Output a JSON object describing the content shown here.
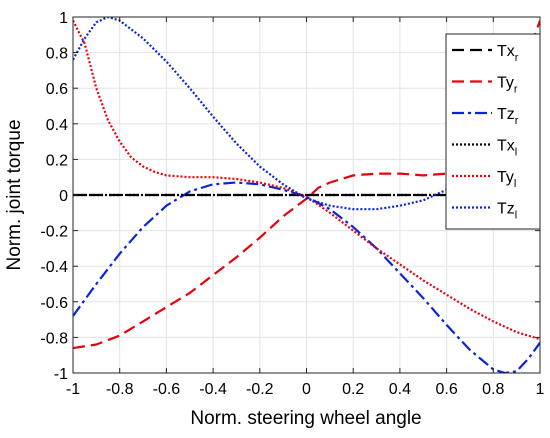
{
  "chart_data": {
    "type": "line",
    "title": "",
    "xlabel": "Norm. steering wheel angle",
    "ylabel": "Norm. joint torque",
    "xlim": [
      -1,
      1
    ],
    "ylim": [
      -1,
      1
    ],
    "grid": true,
    "legend_position": "top-right",
    "x_ticks": [
      -1,
      -0.8,
      -0.6,
      -0.4,
      -0.2,
      0,
      0.2,
      0.4,
      0.6,
      0.8,
      1
    ],
    "x_tick_labels": [
      "-1",
      "-0.8",
      "-0.6",
      "-0.4",
      "-0.2",
      "0",
      "0.2",
      "0.4",
      "0.6",
      "0.8",
      "1"
    ],
    "y_ticks": [
      1,
      0.8,
      0.6,
      0.4,
      0.2,
      0,
      -0.2,
      -0.4,
      -0.6,
      -0.8,
      -1
    ],
    "y_tick_labels": [
      "1",
      "0.8",
      "0.6",
      "0.4",
      "0.2",
      "0",
      "-0.2",
      "-0.4",
      "-0.6",
      "-0.8",
      "-1"
    ],
    "series": [
      {
        "name": "Tx",
        "sub": "r",
        "color": "#000000",
        "style": "dashed",
        "x": [
          -1,
          1
        ],
        "y": [
          0,
          0
        ]
      },
      {
        "name": "Ty",
        "sub": "r",
        "color": "#e8000b",
        "style": "dashed",
        "x": [
          -1,
          -0.9,
          -0.8,
          -0.7,
          -0.6,
          -0.5,
          -0.4,
          -0.3,
          -0.2,
          -0.1,
          0,
          0.05,
          0.1,
          0.2,
          0.3,
          0.4,
          0.5,
          0.6,
          0.7,
          0.8,
          0.9,
          0.95,
          1
        ],
        "y": [
          -0.86,
          -0.84,
          -0.79,
          -0.71,
          -0.63,
          -0.55,
          -0.45,
          -0.35,
          -0.24,
          -0.12,
          -0.02,
          0.04,
          0.07,
          0.11,
          0.12,
          0.12,
          0.11,
          0.12,
          0.15,
          0.25,
          0.55,
          0.8,
          0.98
        ]
      },
      {
        "name": "Tz",
        "sub": "r",
        "color": "#0b24d6",
        "style": "dashdot",
        "x": [
          -1,
          -0.9,
          -0.8,
          -0.7,
          -0.6,
          -0.5,
          -0.4,
          -0.3,
          -0.2,
          -0.1,
          0,
          0.1,
          0.2,
          0.3,
          0.4,
          0.5,
          0.6,
          0.7,
          0.8,
          0.85,
          0.9,
          0.95,
          1
        ],
        "y": [
          -0.68,
          -0.5,
          -0.33,
          -0.18,
          -0.06,
          0.02,
          0.06,
          0.07,
          0.06,
          0.03,
          -0.01,
          -0.08,
          -0.18,
          -0.3,
          -0.44,
          -0.58,
          -0.73,
          -0.87,
          -0.98,
          -1.0,
          -0.99,
          -0.92,
          -0.83
        ]
      },
      {
        "name": "Tx",
        "sub": "l",
        "color": "#000000",
        "style": "dotted",
        "x": [
          -1,
          1
        ],
        "y": [
          0,
          0
        ]
      },
      {
        "name": "Ty",
        "sub": "l",
        "color": "#e8000b",
        "style": "dotted",
        "x": [
          -1,
          -0.95,
          -0.9,
          -0.85,
          -0.8,
          -0.75,
          -0.7,
          -0.65,
          -0.6,
          -0.5,
          -0.4,
          -0.3,
          -0.2,
          -0.1,
          0,
          0.1,
          0.2,
          0.3,
          0.4,
          0.5,
          0.6,
          0.7,
          0.8,
          0.9,
          1
        ],
        "y": [
          0.98,
          0.85,
          0.6,
          0.42,
          0.3,
          0.21,
          0.16,
          0.13,
          0.11,
          0.1,
          0.1,
          0.09,
          0.07,
          0.04,
          -0.01,
          -0.1,
          -0.2,
          -0.3,
          -0.39,
          -0.48,
          -0.56,
          -0.64,
          -0.71,
          -0.77,
          -0.81
        ]
      },
      {
        "name": "Tz",
        "sub": "l",
        "color": "#0b24d6",
        "style": "dotted",
        "x": [
          -1,
          -0.95,
          -0.9,
          -0.85,
          -0.8,
          -0.7,
          -0.6,
          -0.5,
          -0.4,
          -0.3,
          -0.2,
          -0.1,
          0,
          0.1,
          0.2,
          0.3,
          0.4,
          0.5,
          0.6,
          0.7,
          0.8,
          0.9,
          1
        ],
        "y": [
          0.76,
          0.88,
          0.97,
          1.0,
          0.98,
          0.88,
          0.75,
          0.6,
          0.44,
          0.29,
          0.16,
          0.06,
          -0.02,
          -0.06,
          -0.08,
          -0.08,
          -0.06,
          -0.03,
          0.03,
          0.09,
          0.18,
          0.36,
          0.63
        ]
      }
    ]
  }
}
